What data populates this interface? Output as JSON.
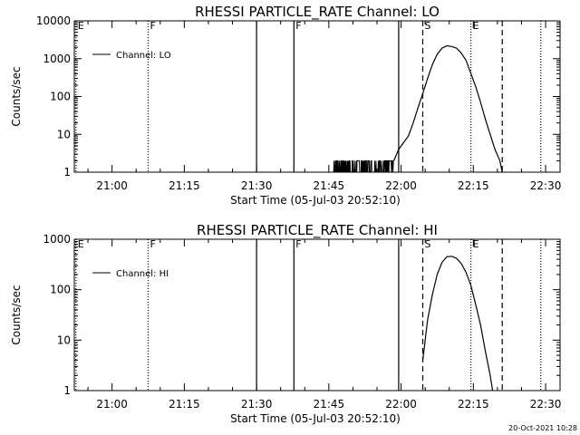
{
  "colors": {
    "background": "#ffffff",
    "foreground": "#000000"
  },
  "timestamp": "20-Oct-2021 10:28",
  "chart_data": [
    {
      "type": "line",
      "title": "RHESSI PARTICLE_RATE Channel: LO",
      "xlabel": "Start Time (05-Jul-03 20:52:10)",
      "ylabel": "Counts/sec",
      "yscale": "log",
      "ylim": [
        1,
        10000
      ],
      "xlim": [
        "20:52:10",
        "22:33:00"
      ],
      "xticks": [
        "21:00",
        "21:15",
        "21:30",
        "21:45",
        "22:00",
        "22:15",
        "22:30"
      ],
      "yticks": [
        "1",
        "10",
        "100",
        "1000",
        "10000"
      ],
      "legend": {
        "position": "top-left",
        "entries": [
          "Channel: LO"
        ]
      },
      "markers": [
        {
          "time": "20:52:30",
          "label": "E",
          "style": "dotted"
        },
        {
          "time": "21:07:30",
          "label": "F",
          "style": "dotted"
        },
        {
          "time": "21:30:00",
          "label": "",
          "style": "solid"
        },
        {
          "time": "21:37:45",
          "label": "F",
          "style": "solid"
        },
        {
          "time": "21:59:30",
          "label": "",
          "style": "solid"
        },
        {
          "time": "22:04:30",
          "label": "S",
          "style": "dashed"
        },
        {
          "time": "22:14:30",
          "label": "E",
          "style": "dotted"
        },
        {
          "time": "22:21:00",
          "label": "",
          "style": "dashed"
        },
        {
          "time": "22:29:00",
          "label": "",
          "style": "dotted"
        }
      ],
      "series": [
        {
          "name": "Channel: LO",
          "noise": {
            "start": "21:46:00",
            "end": "21:58:30",
            "low": 1,
            "high": 2
          },
          "x": [
            "21:58:30",
            "21:59:30",
            "22:00:30",
            "22:01:30",
            "22:02:30",
            "22:03:30",
            "22:04:30",
            "22:05:30",
            "22:06:30",
            "22:07:30",
            "22:08:30",
            "22:09:30",
            "22:10:30",
            "22:11:30",
            "22:12:30",
            "22:13:30",
            "22:14:30",
            "22:15:30",
            "22:16:30",
            "22:17:30",
            "22:18:30",
            "22:19:30",
            "22:20:30",
            "22:21:00"
          ],
          "y": [
            2,
            4,
            6,
            9,
            20,
            50,
            120,
            300,
            700,
            1300,
            1900,
            2200,
            2100,
            1900,
            1400,
            900,
            400,
            180,
            70,
            25,
            10,
            4,
            2,
            1
          ]
        }
      ]
    },
    {
      "type": "line",
      "title": "RHESSI PARTICLE_RATE Channel: HI",
      "xlabel": "Start Time (05-Jul-03 20:52:10)",
      "ylabel": "Counts/sec",
      "yscale": "log",
      "ylim": [
        1,
        1000
      ],
      "xlim": [
        "20:52:10",
        "22:33:00"
      ],
      "xticks": [
        "21:00",
        "21:15",
        "21:30",
        "21:45",
        "22:00",
        "22:15",
        "22:30"
      ],
      "yticks": [
        "1",
        "10",
        "100",
        "1000"
      ],
      "legend": {
        "position": "top-left",
        "entries": [
          "Channel: HI"
        ]
      },
      "markers": [
        {
          "time": "20:52:30",
          "label": "E",
          "style": "dotted"
        },
        {
          "time": "21:07:30",
          "label": "F",
          "style": "dotted"
        },
        {
          "time": "21:30:00",
          "label": "",
          "style": "solid"
        },
        {
          "time": "21:37:45",
          "label": "F",
          "style": "solid"
        },
        {
          "time": "21:59:30",
          "label": "",
          "style": "solid"
        },
        {
          "time": "22:04:30",
          "label": "S",
          "style": "dashed"
        },
        {
          "time": "22:14:30",
          "label": "E",
          "style": "dotted"
        },
        {
          "time": "22:21:00",
          "label": "",
          "style": "dashed"
        },
        {
          "time": "22:29:00",
          "label": "",
          "style": "dotted"
        }
      ],
      "series": [
        {
          "name": "Channel: HI",
          "x": [
            "22:04:30",
            "22:05:00",
            "22:05:30",
            "22:06:30",
            "22:07:30",
            "22:08:30",
            "22:09:30",
            "22:10:30",
            "22:11:30",
            "22:12:30",
            "22:13:30",
            "22:14:30",
            "22:15:30",
            "22:16:30",
            "22:17:30",
            "22:18:30",
            "22:19:00"
          ],
          "y": [
            4,
            10,
            25,
            80,
            200,
            350,
            450,
            460,
            420,
            330,
            220,
            120,
            50,
            20,
            6,
            2,
            1
          ]
        }
      ]
    }
  ]
}
